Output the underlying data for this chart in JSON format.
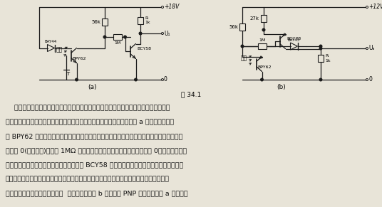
{
  "bg_color": "#e8e4d8",
  "line_color": "#1a1a1a",
  "text_color": "#111111",
  "title": "图 34.1",
  "vcc_a": "+18V",
  "vcc_b": "+12V",
  "label_a": "(a)",
  "label_b": "(b)",
  "text_lines": [
    "    用了记录和测量的光信号通常是很平坦的，没有明显的卜升前沿。在孔分配器中由于反",
    "射作用使得信号上升速度很难满足需要，为此要接入一个触发电路，在图 a 中这由光敏晶体",
    "管 BPY62 承担。当光敏晶体管上无光线时截止，从而使晶体管基极上流有电流而导通，输出",
    "电压为 0(复位信号)。经过 1MΩ 反馈电阻送至光敏晶体管的基极电流也为 0。当有光线时，",
    "光敏晶体管导通，其电流足够大，使晶体管 BCY58 的基极电流明显地受集电极电流限制，通",
    "过光敏晶体管的反馈电阻使光敏晶体管突然导通，其后而的晶体管截止，输出高电平。即使",
    "光线此时消失了，这种状态也将  直保持下去。图 b 电路采用 PNP 晶体管，与图 a 相反，光"
  ]
}
